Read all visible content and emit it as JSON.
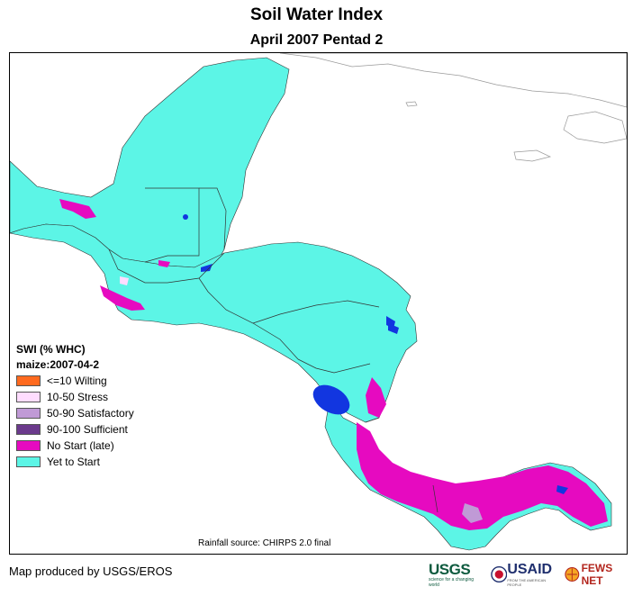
{
  "title": "Soil Water Index",
  "subtitle": "April 2007 Pentad 2",
  "legend": {
    "title": "SWI (% WHC)",
    "subtitle": "maize:2007-04-2",
    "items": [
      {
        "label": "<=10 Wilting",
        "color": "#ff6a1f"
      },
      {
        "label": "10-50 Stress",
        "color": "#ffdcff"
      },
      {
        "label": "50-90 Satisfactory",
        "color": "#c09ad6"
      },
      {
        "label": "90-100 Sufficient",
        "color": "#6b3a8c"
      },
      {
        "label": "No Start (late)",
        "color": "#e60ac0"
      },
      {
        "label": "Yet to Start",
        "color": "#5cf5e6"
      }
    ]
  },
  "map_colors": {
    "ocean": "#ffffff",
    "land": "#5cf5e6",
    "no_start": "#e60ac0",
    "water": "#1236e0",
    "border": "#333333"
  },
  "source_note": "Rainfall source: CHIRPS 2.0 final",
  "credit": "Map produced by USGS/EROS",
  "logos": {
    "usgs": "USGS",
    "usgs_tagline": "science for a changing world",
    "usaid": "USAID",
    "usaid_tagline": "FROM THE AMERICAN PEOPLE",
    "fews": "FEWS NET"
  }
}
